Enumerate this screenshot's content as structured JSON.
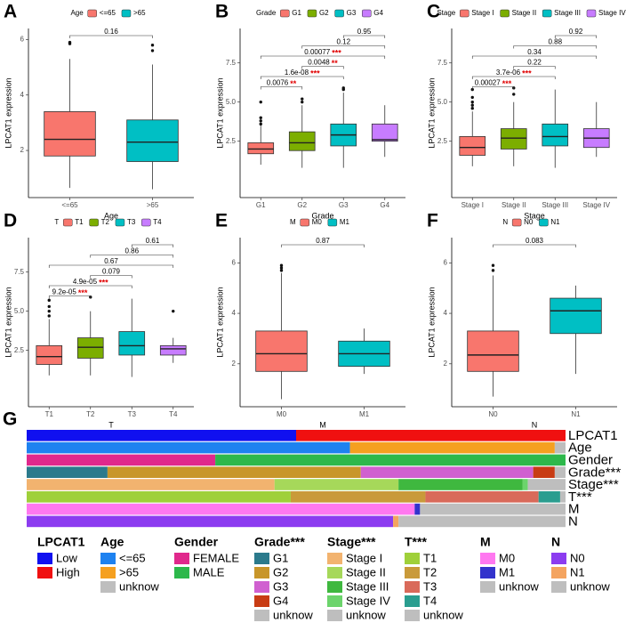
{
  "chart_data": [
    {
      "type": "box",
      "panel": "A",
      "legend_title": "Age",
      "x_label": "Age",
      "y_label": "LPCAT1 expression",
      "categories": [
        "<=65",
        ">65"
      ],
      "colors": [
        "#F8766D",
        "#00BFC4"
      ],
      "boxes": [
        {
          "low": 0.65,
          "q1": 1.8,
          "median": 2.4,
          "q3": 3.4,
          "high": 5.3,
          "outliers": [
            5.85,
            5.9
          ]
        },
        {
          "low": 0.6,
          "q1": 1.6,
          "median": 2.3,
          "q3": 3.1,
          "high": 5.1,
          "outliers": [
            5.6,
            5.8
          ]
        }
      ],
      "ylim": [
        0.3,
        6.4
      ],
      "yticks": [
        2,
        4,
        6
      ],
      "comparisons": [
        {
          "groups": [
            "<=65",
            ">65"
          ],
          "label": "0.16"
        }
      ]
    },
    {
      "type": "box",
      "panel": "B",
      "legend_title": "Grade",
      "x_label": "Grade",
      "y_label": "LPCAT1 expression",
      "categories": [
        "G1",
        "G2",
        "G3",
        "G4"
      ],
      "colors": [
        "#F8766D",
        "#7CAE00",
        "#00BFC4",
        "#C77CFF"
      ],
      "boxes": [
        {
          "low": 1.0,
          "q1": 1.7,
          "median": 2.0,
          "q3": 2.4,
          "high": 3.5,
          "outliers": [
            3.6,
            3.8,
            4.0,
            5.0
          ]
        },
        {
          "low": 0.8,
          "q1": 1.9,
          "median": 2.4,
          "q3": 3.1,
          "high": 4.8,
          "outliers": [
            5.0,
            5.2
          ]
        },
        {
          "low": 0.8,
          "q1": 2.2,
          "median": 2.9,
          "q3": 3.6,
          "high": 5.6,
          "outliers": [
            5.8,
            5.9
          ]
        },
        {
          "low": 1.5,
          "q1": 2.5,
          "median": 2.6,
          "q3": 3.6,
          "high": 4.8,
          "outliers": []
        }
      ],
      "ylim": [
        -1.1,
        9.7
      ],
      "yticks": [
        2.5,
        {
          "value": 5,
          "label": "5.0"
        },
        7.5
      ],
      "comparisons": [
        {
          "groups": [
            "G1",
            "G2"
          ],
          "label": "0.0076",
          "stars": "**"
        },
        {
          "groups": [
            "G1",
            "G3"
          ],
          "label": "1.6e-08",
          "stars": "***"
        },
        {
          "groups": [
            "G2",
            "G3"
          ],
          "label": "0.0048",
          "stars": "**"
        },
        {
          "groups": [
            "G1",
            "G4"
          ],
          "label": "0.00077",
          "stars": "***"
        },
        {
          "groups": [
            "G2",
            "G4"
          ],
          "label": "0.12"
        },
        {
          "groups": [
            "G3",
            "G4"
          ],
          "label": "0.95"
        }
      ]
    },
    {
      "type": "box",
      "panel": "C",
      "legend_title": "Stage",
      "x_label": "Stage",
      "y_label": "LPCAT1 expression",
      "categories": [
        "Stage I",
        "Stage II",
        "Stage III",
        "Stage IV"
      ],
      "colors": [
        "#F8766D",
        "#7CAE00",
        "#00BFC4",
        "#C77CFF"
      ],
      "boxes": [
        {
          "low": 0.9,
          "q1": 1.6,
          "median": 2.1,
          "q3": 2.8,
          "high": 4.4,
          "outliers": [
            4.6,
            4.8,
            5.0,
            5.3,
            5.8
          ]
        },
        {
          "low": 0.9,
          "q1": 2.0,
          "median": 2.7,
          "q3": 3.3,
          "high": 5.0,
          "outliers": [
            5.5,
            5.9
          ]
        },
        {
          "low": 0.8,
          "q1": 2.2,
          "median": 2.8,
          "q3": 3.6,
          "high": 5.8,
          "outliers": []
        },
        {
          "low": 1.5,
          "q1": 2.1,
          "median": 2.7,
          "q3": 3.3,
          "high": 5.0,
          "outliers": []
        }
      ],
      "ylim": [
        -1.1,
        9.7
      ],
      "yticks": [
        2.5,
        {
          "value": 5,
          "label": "5.0"
        },
        7.5
      ],
      "comparisons": [
        {
          "groups": [
            "Stage I",
            "Stage II"
          ],
          "label": "0.00027",
          "stars": "***"
        },
        {
          "groups": [
            "Stage I",
            "Stage III"
          ],
          "label": "3.7e-06",
          "stars": "***"
        },
        {
          "groups": [
            "Stage II",
            "Stage III"
          ],
          "label": "0.22"
        },
        {
          "groups": [
            "Stage I",
            "Stage IV"
          ],
          "label": "0.34"
        },
        {
          "groups": [
            "Stage II",
            "Stage IV"
          ],
          "label": "0.88"
        },
        {
          "groups": [
            "Stage III",
            "Stage IV"
          ],
          "label": "0.92"
        }
      ]
    },
    {
      "type": "box",
      "panel": "D",
      "legend_title": "T",
      "x_label": "T",
      "y_label": "LPCAT1 expression",
      "categories": [
        "T1",
        "T2",
        "T3",
        "T4"
      ],
      "colors": [
        "#F8766D",
        "#7CAE00",
        "#00BFC4",
        "#C77CFF"
      ],
      "boxes": [
        {
          "low": 0.9,
          "q1": 1.6,
          "median": 2.1,
          "q3": 2.8,
          "high": 4.5,
          "outliers": [
            4.7,
            5.0,
            5.3,
            5.7
          ]
        },
        {
          "low": 0.9,
          "q1": 2.0,
          "median": 2.7,
          "q3": 3.3,
          "high": 5.0,
          "outliers": [
            5.9
          ]
        },
        {
          "low": 0.8,
          "q1": 2.2,
          "median": 2.8,
          "q3": 3.7,
          "high": 5.8,
          "outliers": []
        },
        {
          "low": 1.7,
          "q1": 2.2,
          "median": 2.6,
          "q3": 2.8,
          "high": 3.3,
          "outliers": [
            5.0
          ]
        }
      ],
      "ylim": [
        -1.1,
        9.7
      ],
      "yticks": [
        2.5,
        {
          "value": 5,
          "label": "5.0"
        },
        7.5
      ],
      "comparisons": [
        {
          "groups": [
            "T1",
            "T2"
          ],
          "label": "9.2e-05",
          "stars": "***"
        },
        {
          "groups": [
            "T1",
            "T3"
          ],
          "label": "4.9e-05",
          "stars": "***"
        },
        {
          "groups": [
            "T2",
            "T3"
          ],
          "label": "0.079"
        },
        {
          "groups": [
            "T1",
            "T4"
          ],
          "label": "0.67"
        },
        {
          "groups": [
            "T2",
            "T4"
          ],
          "label": "0.86"
        },
        {
          "groups": [
            "T3",
            "T4"
          ],
          "label": "0.61"
        }
      ]
    },
    {
      "type": "box",
      "panel": "E",
      "legend_title": "M",
      "x_label": "M",
      "y_label": "LPCAT1 expression",
      "categories": [
        "M0",
        "M1"
      ],
      "colors": [
        "#F8766D",
        "#00BFC4"
      ],
      "boxes": [
        {
          "low": 0.6,
          "q1": 1.7,
          "median": 2.4,
          "q3": 3.3,
          "high": 5.6,
          "outliers": [
            5.7,
            5.8,
            5.9
          ]
        },
        {
          "low": 1.6,
          "q1": 1.9,
          "median": 2.4,
          "q3": 2.9,
          "high": 3.4,
          "outliers": []
        }
      ],
      "ylim": [
        0.3,
        7.0
      ],
      "yticks": [
        2,
        4,
        6
      ],
      "comparisons": [
        {
          "groups": [
            "M0",
            "M1"
          ],
          "label": "0.87"
        }
      ]
    },
    {
      "type": "box",
      "panel": "F",
      "legend_title": "N",
      "x_label": "N",
      "y_label": "LPCAT1 expression",
      "categories": [
        "N0",
        "N1"
      ],
      "colors": [
        "#F8766D",
        "#00BFC4"
      ],
      "boxes": [
        {
          "low": 0.7,
          "q1": 1.7,
          "median": 2.35,
          "q3": 3.3,
          "high": 5.5,
          "outliers": [
            5.7,
            5.9
          ]
        },
        {
          "low": 1.6,
          "q1": 3.2,
          "median": 4.1,
          "q3": 4.6,
          "high": 5.1,
          "outliers": []
        }
      ],
      "ylim": [
        0.3,
        7.0
      ],
      "yticks": [
        2,
        4,
        6
      ],
      "comparisons": [
        {
          "groups": [
            "N0",
            "N1"
          ],
          "label": "0.083"
        }
      ]
    },
    {
      "type": "annotation-heatmap",
      "panel": "G",
      "tracks": [
        {
          "name": "LPCAT1",
          "categories": [
            "Low",
            "High"
          ],
          "colors": [
            "#1010f0",
            "#f01010"
          ],
          "values": [
            50,
            50
          ]
        },
        {
          "name": "Age",
          "categories": [
            "<=65",
            ">65",
            "unknow"
          ],
          "colors": [
            "#1e82f0",
            "#f5a020",
            "#bebebe"
          ],
          "values": [
            60,
            38,
            2
          ]
        },
        {
          "name": "Gender",
          "categories": [
            "FEMALE",
            "MALE"
          ],
          "colors": [
            "#e0288c",
            "#2db84b"
          ],
          "values": [
            35,
            65
          ]
        },
        {
          "name": "Grade***",
          "categories": [
            "G1",
            "G2",
            "G3",
            "G4",
            "unknow"
          ],
          "colors": [
            "#2b7a8c",
            "#c8962a",
            "#d060d0",
            "#c83c14",
            "#bebebe"
          ],
          "values": [
            15,
            47,
            32,
            4,
            2
          ]
        },
        {
          "name": "Stage***",
          "categories": [
            "Stage I",
            "Stage II",
            "Stage III",
            "Stage IV",
            "unknow"
          ],
          "colors": [
            "#f2b36f",
            "#a6d85a",
            "#3fb83f",
            "#6cd46c",
            "#bebebe"
          ],
          "values": [
            46,
            23,
            23,
            1,
            7
          ]
        },
        {
          "name": "T***",
          "categories": [
            "T1",
            "T2",
            "T3",
            "T4",
            "unknow"
          ],
          "colors": [
            "#9fd03a",
            "#c99a3a",
            "#d96a5a",
            "#2a9d8f",
            "#bebebe"
          ],
          "values": [
            49,
            25,
            21,
            4,
            1
          ]
        },
        {
          "name": "M",
          "categories": [
            "M0",
            "M1",
            "unknow"
          ],
          "colors": [
            "#ff78f0",
            "#3333cc",
            "#bebebe"
          ],
          "values": [
            72,
            1,
            27
          ]
        },
        {
          "name": "N",
          "categories": [
            "N0",
            "N1",
            "unknow"
          ],
          "colors": [
            "#8c3cf0",
            "#f4a460",
            "#bebebe"
          ],
          "values": [
            68,
            1,
            31
          ]
        }
      ]
    }
  ]
}
